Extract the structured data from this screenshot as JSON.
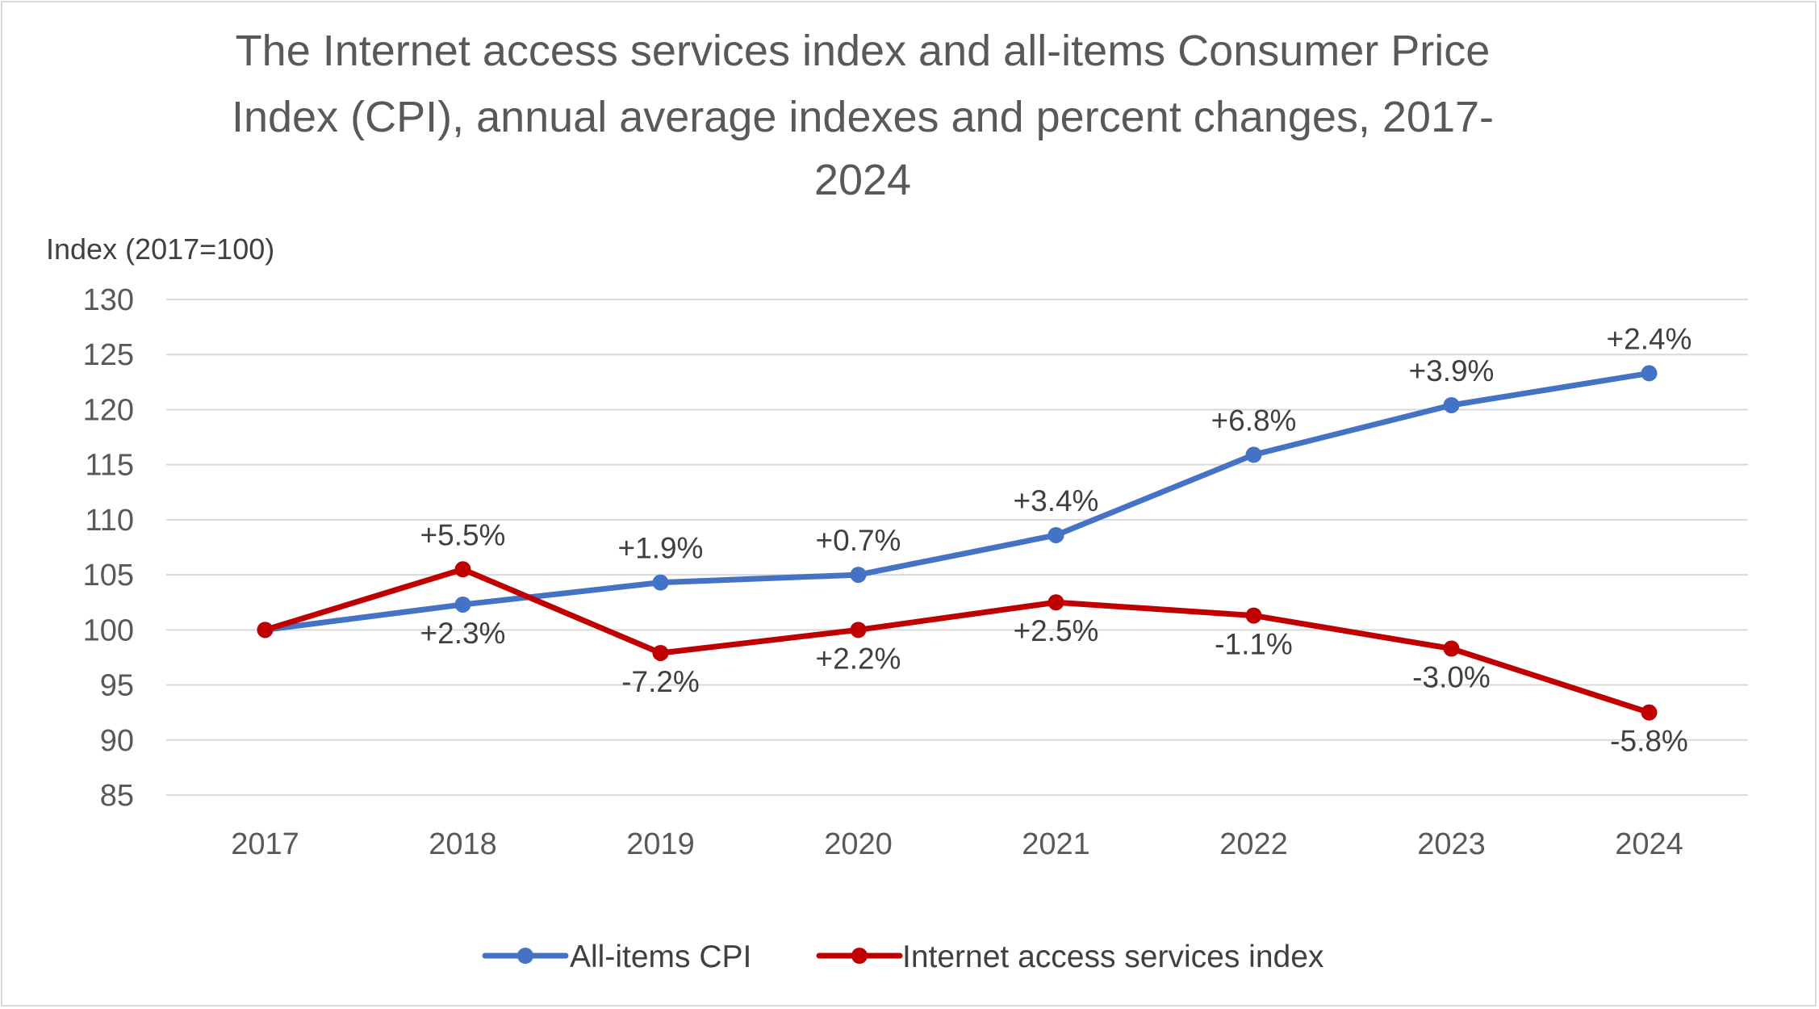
{
  "chart_data": {
    "type": "line",
    "title_lines": [
      "The Internet access services index and all-items Consumer Price",
      "Index (CPI), annual average indexes and percent changes, 2017-",
      "2024"
    ],
    "ylabel": "Index (2017=100)",
    "xlabel": "",
    "categories": [
      "2017",
      "2018",
      "2019",
      "2020",
      "2021",
      "2022",
      "2023",
      "2024"
    ],
    "ylim": [
      85,
      130
    ],
    "yticks": [
      85,
      90,
      95,
      100,
      105,
      110,
      115,
      120,
      125,
      130
    ],
    "grid": true,
    "legend_position": "bottom-center",
    "series": [
      {
        "name": "All-items CPI",
        "color": "#4472c4",
        "values": [
          100,
          102.3,
          104.3,
          105.0,
          108.6,
          115.9,
          120.4,
          123.3
        ],
        "labels": [
          "",
          "+2.3%",
          "+1.9%",
          "+0.7%",
          "+3.4%",
          "+6.8%",
          "+3.9%",
          "+2.4%"
        ],
        "label_positions": [
          "",
          "below",
          "above",
          "above",
          "above",
          "above",
          "above",
          "above"
        ]
      },
      {
        "name": "Internet access services index",
        "color": "#c00000",
        "values": [
          100,
          105.5,
          97.9,
          100.0,
          102.5,
          101.3,
          98.3,
          92.5
        ],
        "labels": [
          "",
          "+5.5%",
          "-7.2%",
          "+2.2%",
          "+2.5%",
          "-1.1%",
          "-3.0%",
          "-5.8%"
        ],
        "label_positions": [
          "",
          "above",
          "below",
          "below",
          "below",
          "below",
          "below",
          "below"
        ]
      }
    ]
  }
}
